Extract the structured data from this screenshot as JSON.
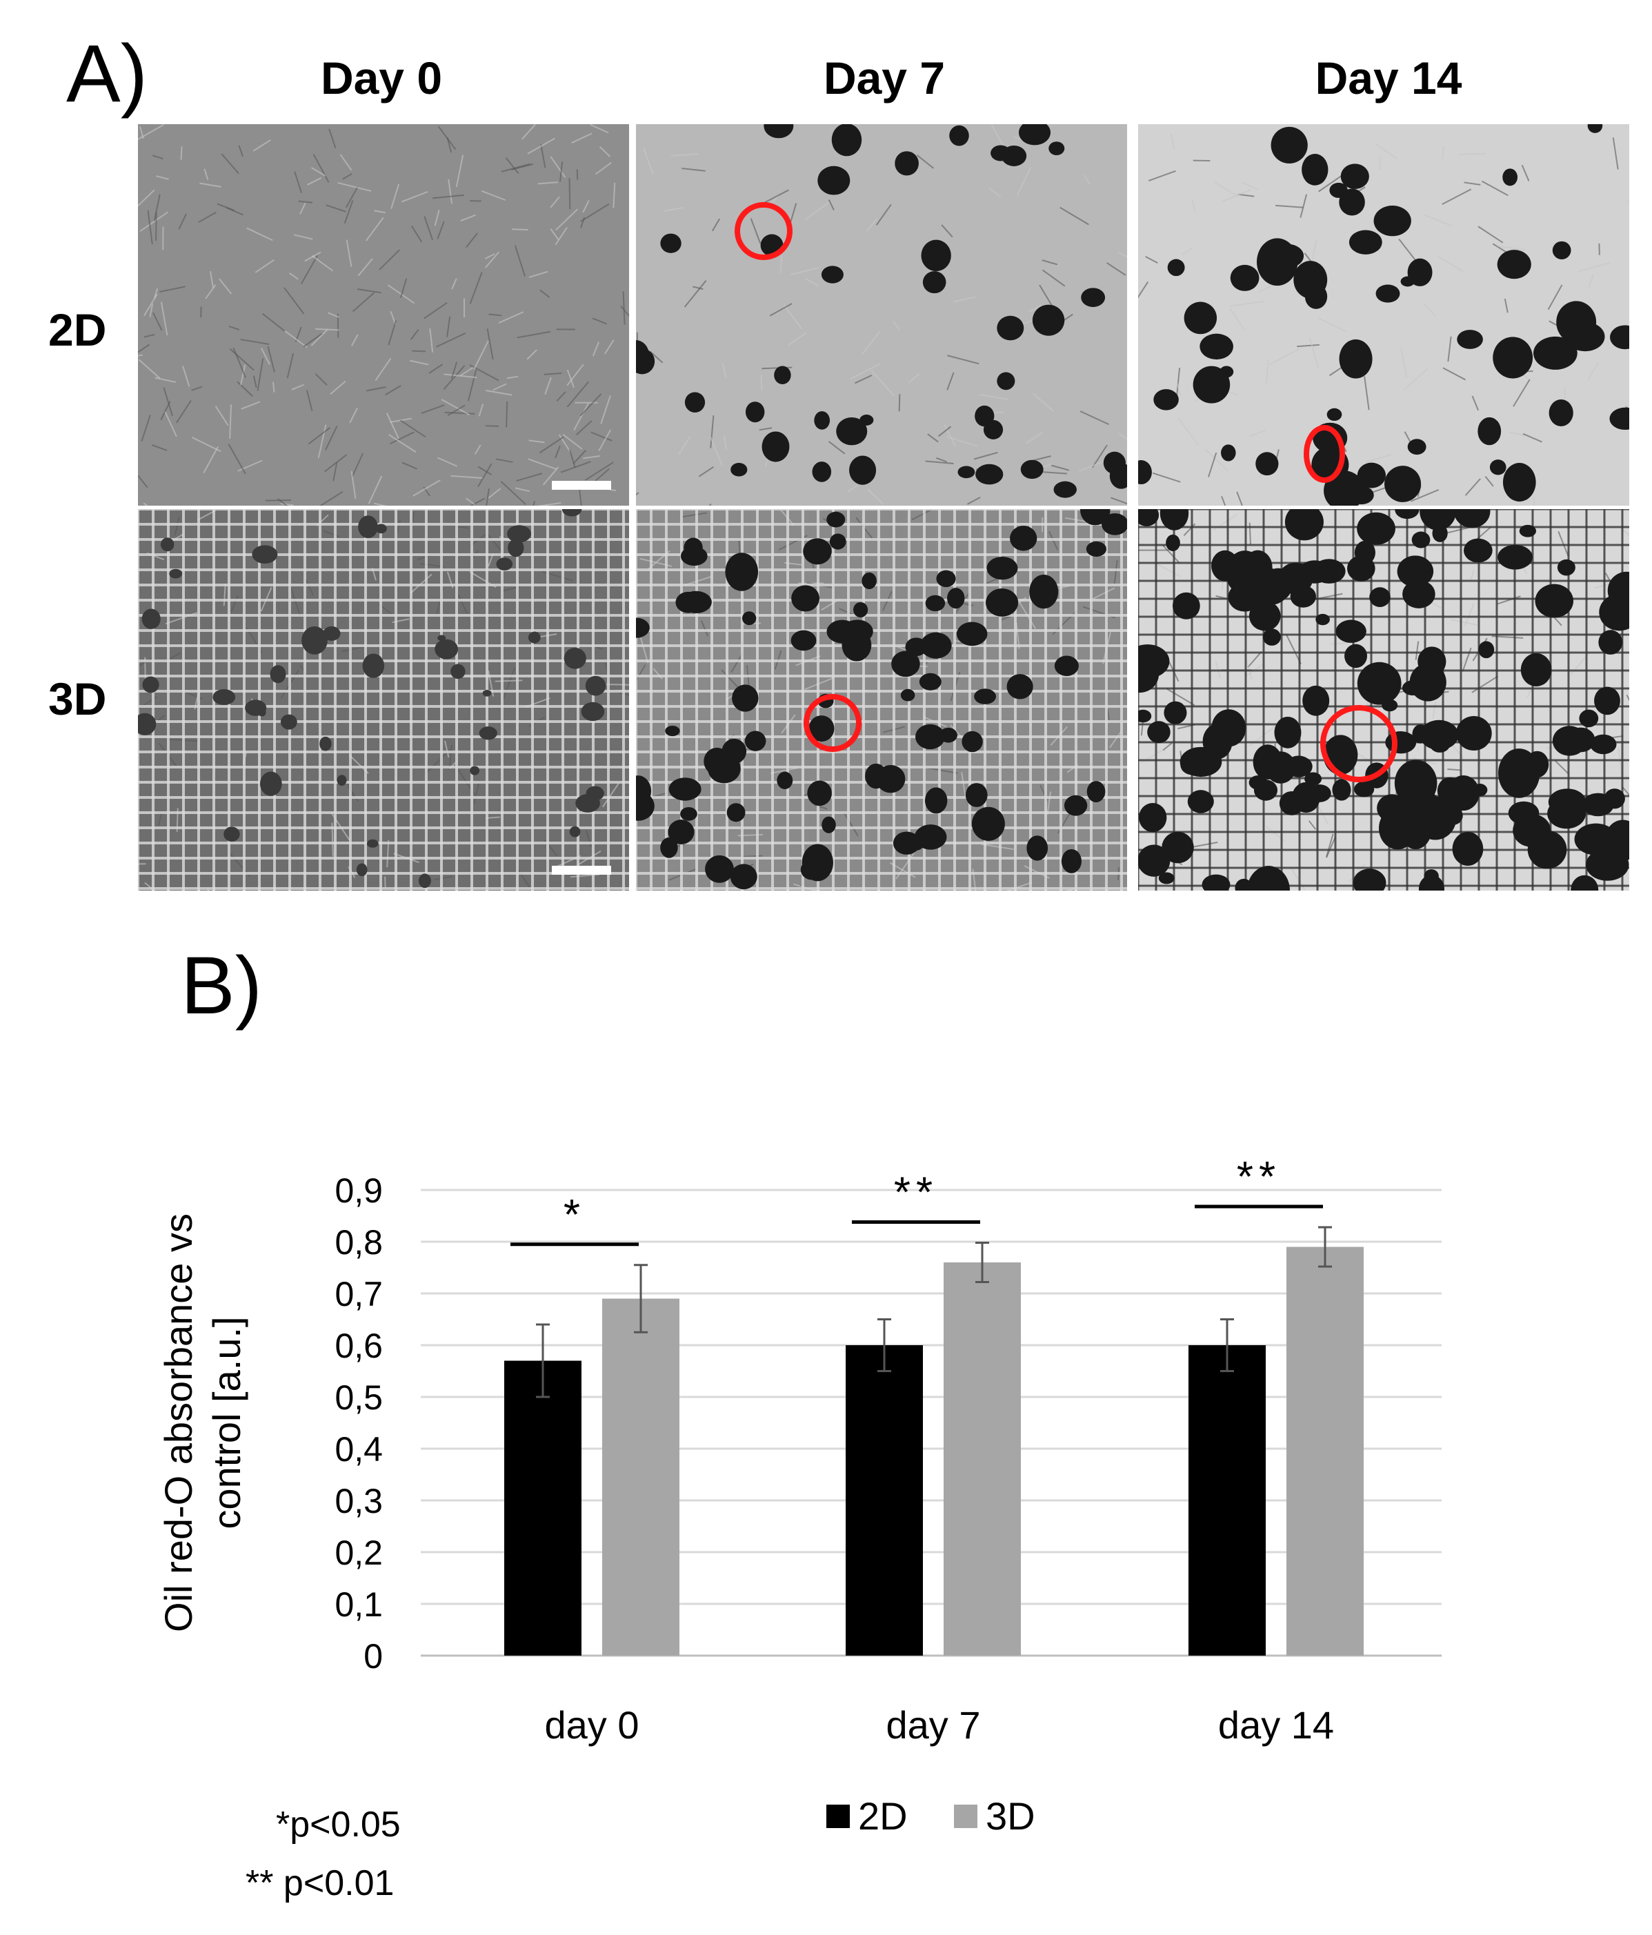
{
  "panel_a": {
    "label": "A)",
    "columns": [
      "Day 0",
      "Day 7",
      "Day 14"
    ],
    "rows": [
      "2D",
      "3D"
    ]
  },
  "panel_b": {
    "label": "B)"
  },
  "chart_data": {
    "type": "bar",
    "categories": [
      "day 0",
      "day 7",
      "day 14"
    ],
    "series": [
      {
        "name": "2D",
        "values": [
          0.57,
          0.6,
          0.6
        ],
        "errors": [
          0.07,
          0.05,
          0.05
        ],
        "color": "#000000"
      },
      {
        "name": "3D",
        "values": [
          0.69,
          0.76,
          0.79
        ],
        "errors": [
          0.065,
          0.038,
          0.038
        ],
        "color": "#a6a6a6"
      }
    ],
    "ylabel_lines": [
      "Oil red-O absorbance vs",
      "control [a.u.]"
    ],
    "xlabel": "",
    "ylim": [
      0,
      0.9
    ],
    "yticks": [
      "0",
      "0,1",
      "0,2",
      "0,3",
      "0,4",
      "0,5",
      "0,6",
      "0,7",
      "0,8",
      "0,9"
    ],
    "grid": true,
    "legend_position": "bottom",
    "significance": [
      "*",
      "**",
      "**"
    ]
  },
  "footnotes": [
    "*p<0.05",
    "** p<0.01"
  ]
}
